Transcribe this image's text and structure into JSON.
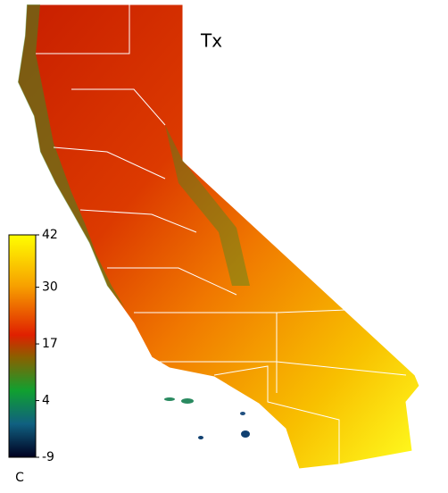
{
  "map": {
    "title": "Tx",
    "colorbar": {
      "lim": [
        -9,
        42
      ],
      "ticks": [
        42,
        30,
        17,
        4,
        -9
      ],
      "unit": "C"
    }
  }
}
